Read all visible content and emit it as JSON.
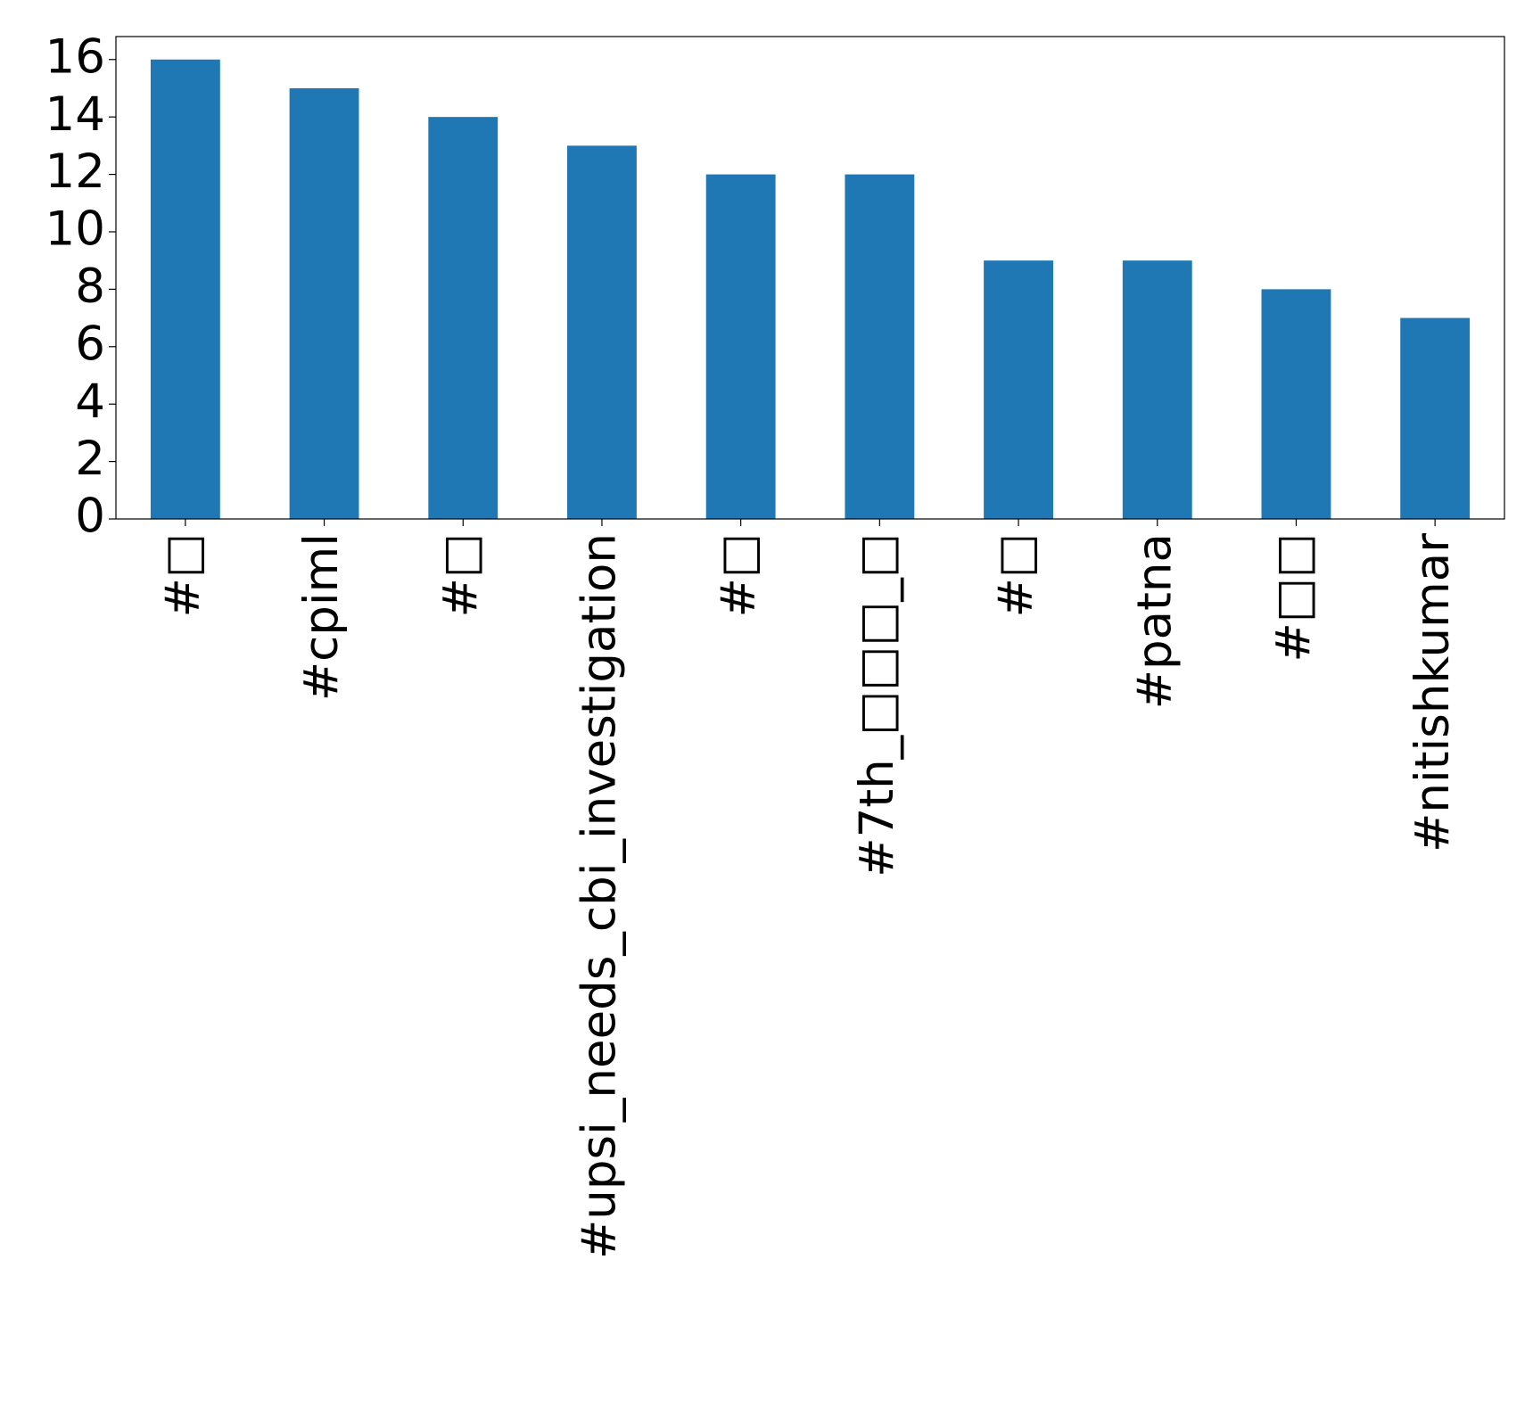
{
  "chart_data": {
    "type": "bar",
    "categories": [
      "#□",
      "#cpiml",
      "#□",
      "#upsi_needs_cbi_investigation",
      "#□",
      "#7th_□□□_□",
      "#□",
      "#patna",
      "#□□",
      "#nitishkumar"
    ],
    "values": [
      16,
      15,
      14,
      13,
      12,
      12,
      9,
      9,
      8,
      7
    ],
    "color": "#1f77b4",
    "ylim": [
      0,
      16.8
    ],
    "yticks": [
      0,
      2,
      4,
      6,
      8,
      10,
      12,
      14,
      16
    ],
    "grid": false
  }
}
